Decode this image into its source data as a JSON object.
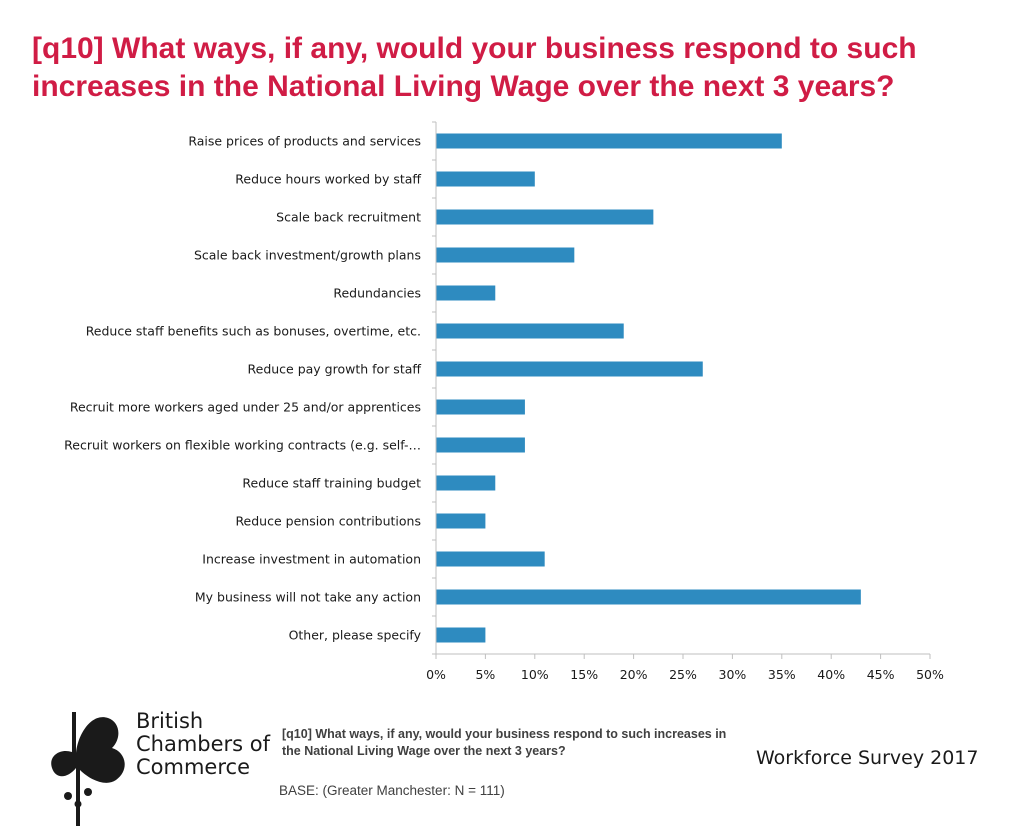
{
  "title": "[q10] What ways, if any, would your business respond to such increases in the National Living Wage over the next 3 years?",
  "chart_data": {
    "type": "bar",
    "orientation": "horizontal",
    "title": "[q10] What ways, if any, would your business respond to such increases in the National Living Wage over the next 3 years?",
    "categories": [
      "Raise prices of products and services",
      "Reduce hours worked by staff",
      "Scale back recruitment",
      "Scale back investment/growth plans",
      "Redundancies",
      "Reduce staff benefits such as bonuses, overtime, etc.",
      "Reduce pay growth for staff",
      "Recruit more workers aged under 25 and/or apprentices",
      "Recruit workers on flexible working contracts (e.g. self-…",
      "Reduce staff training budget",
      "Reduce pension contributions",
      "Increase investment in automation",
      "My business will not take any action",
      "Other, please specify"
    ],
    "values": [
      35,
      10,
      22,
      14,
      6,
      19,
      27,
      9,
      9,
      6,
      5,
      11,
      43,
      5
    ],
    "xlim": [
      0,
      50
    ],
    "xticks": [
      "0%",
      "5%",
      "10%",
      "15%",
      "20%",
      "25%",
      "30%",
      "35%",
      "40%",
      "45%",
      "50%"
    ],
    "xlabel": "",
    "ylabel": "",
    "bar_color": "#2e8bc0",
    "grid": false,
    "legend": "none"
  },
  "logo": {
    "lines": [
      "British",
      "Chambers of",
      "Commerce"
    ],
    "color": "#1a1a1a"
  },
  "footnote": "[q10] What ways, if any, would your business respond to such increases in the National Living Wage over the next 3 years?",
  "survey_label": "Workforce Survey 2017",
  "base": "BASE: (Greater Manchester: N = 111)",
  "colors": {
    "title": "#d01c45",
    "axis": "#bfbfbf"
  }
}
